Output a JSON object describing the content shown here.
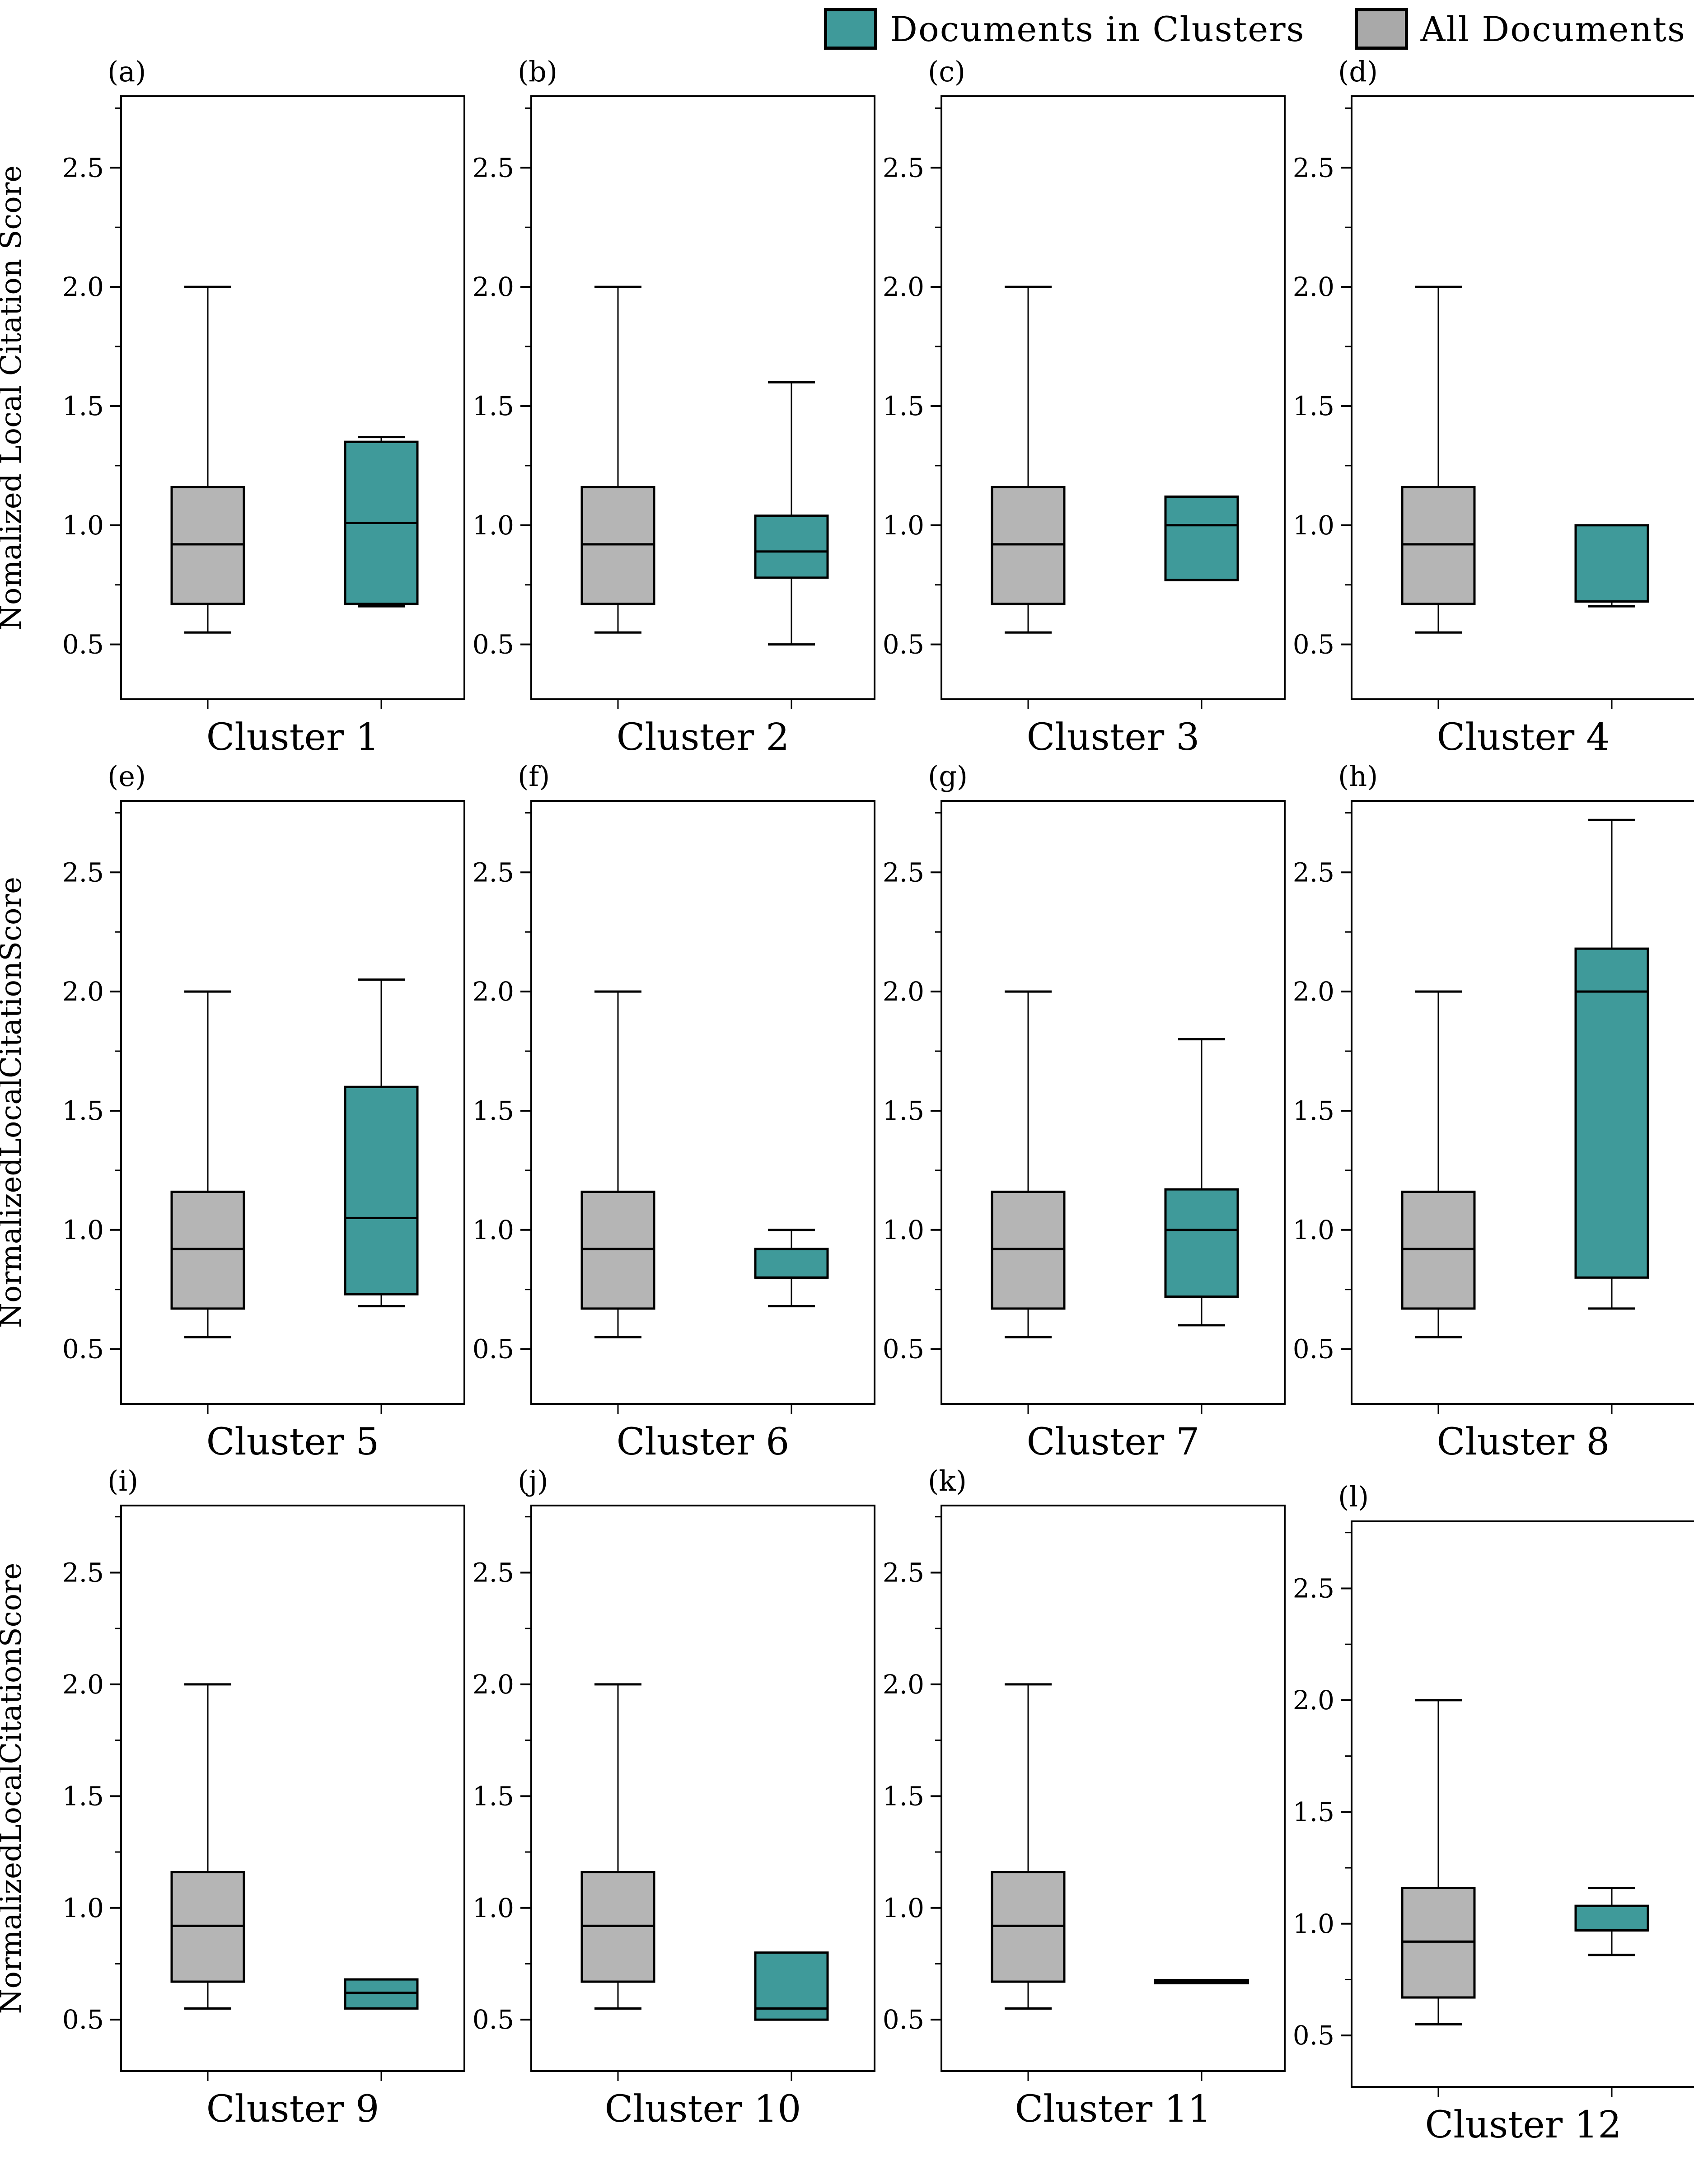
{
  "legend": {
    "items": [
      {
        "label": "Documents in Clusters",
        "color": "#3f9a9a"
      },
      {
        "label": "All Documents",
        "color": "#a9a9a9"
      }
    ]
  },
  "axis": {
    "ylim": [
      0.27,
      2.8
    ],
    "ytick_labels": [
      "0.5",
      "1.0",
      "1.5",
      "2.0",
      "2.5"
    ],
    "ytick_values": [
      0.5,
      1.0,
      1.5,
      2.0,
      2.5
    ],
    "minor_tick_values": [
      0.75,
      1.25,
      1.75,
      2.25,
      2.75
    ],
    "grid": false
  },
  "chart_data": [
    {
      "type": "box",
      "panel_label": "(a)",
      "title": "Cluster 1",
      "ylabel": "Nomalized Local Citation Score",
      "show_ylabel": true,
      "offset_y": 0,
      "series": [
        {
          "name": "All Documents",
          "color": "#b5b5b5",
          "low": 0.55,
          "q1": 0.67,
          "median": 0.92,
          "q3": 1.16,
          "high": 2.0
        },
        {
          "name": "Documents in Clusters",
          "color": "#3f9a9a",
          "low": 0.66,
          "q1": 0.67,
          "median": 1.01,
          "q3": 1.35,
          "high": 1.37
        }
      ]
    },
    {
      "type": "box",
      "panel_label": "(b)",
      "title": "Cluster 2",
      "ylabel": "",
      "show_ylabel": false,
      "offset_y": 0,
      "series": [
        {
          "name": "All Documents",
          "color": "#b5b5b5",
          "low": 0.55,
          "q1": 0.67,
          "median": 0.92,
          "q3": 1.16,
          "high": 2.0
        },
        {
          "name": "Documents in Clusters",
          "color": "#3f9a9a",
          "low": 0.5,
          "q1": 0.78,
          "median": 0.89,
          "q3": 1.04,
          "high": 1.6
        }
      ]
    },
    {
      "type": "box",
      "panel_label": "(c)",
      "title": "Cluster 3",
      "ylabel": "",
      "show_ylabel": false,
      "offset_y": 0,
      "series": [
        {
          "name": "All Documents",
          "color": "#b5b5b5",
          "low": 0.55,
          "q1": 0.67,
          "median": 0.92,
          "q3": 1.16,
          "high": 2.0
        },
        {
          "name": "Documents in Clusters",
          "color": "#3f9a9a",
          "low": 0.77,
          "q1": 0.77,
          "median": 1.0,
          "q3": 1.12,
          "high": 1.12
        }
      ]
    },
    {
      "type": "box",
      "panel_label": "(d)",
      "title": "Cluster 4",
      "ylabel": "",
      "show_ylabel": false,
      "offset_y": 0,
      "series": [
        {
          "name": "All Documents",
          "color": "#b5b5b5",
          "low": 0.55,
          "q1": 0.67,
          "median": 0.92,
          "q3": 1.16,
          "high": 2.0
        },
        {
          "name": "Documents in Clusters",
          "color": "#3f9a9a",
          "low": 0.66,
          "q1": 0.68,
          "median": 0.68,
          "q3": 1.0,
          "high": 1.0
        }
      ]
    },
    {
      "type": "box",
      "panel_label": "(e)",
      "title": "Cluster 5",
      "ylabel": "NormalizedLocalCitationScore",
      "show_ylabel": true,
      "offset_y": 0,
      "series": [
        {
          "name": "All Documents",
          "color": "#b5b5b5",
          "low": 0.55,
          "q1": 0.67,
          "median": 0.92,
          "q3": 1.16,
          "high": 2.0
        },
        {
          "name": "Documents in Clusters",
          "color": "#3f9a9a",
          "low": 0.68,
          "q1": 0.73,
          "median": 1.05,
          "q3": 1.6,
          "high": 2.05
        }
      ]
    },
    {
      "type": "box",
      "panel_label": "(f)",
      "title": "Cluster 6",
      "ylabel": "",
      "show_ylabel": false,
      "offset_y": 0,
      "series": [
        {
          "name": "All Documents",
          "color": "#b5b5b5",
          "low": 0.55,
          "q1": 0.67,
          "median": 0.92,
          "q3": 1.16,
          "high": 2.0
        },
        {
          "name": "Documents in Clusters",
          "color": "#3f9a9a",
          "low": 0.68,
          "q1": 0.8,
          "median": 0.8,
          "q3": 0.92,
          "high": 1.0
        }
      ]
    },
    {
      "type": "box",
      "panel_label": "(g)",
      "title": "Cluster 7",
      "ylabel": "",
      "show_ylabel": false,
      "offset_y": 0,
      "series": [
        {
          "name": "All Documents",
          "color": "#b5b5b5",
          "low": 0.55,
          "q1": 0.67,
          "median": 0.92,
          "q3": 1.16,
          "high": 2.0
        },
        {
          "name": "Documents in Clusters",
          "color": "#3f9a9a",
          "low": 0.6,
          "q1": 0.72,
          "median": 1.0,
          "q3": 1.17,
          "high": 1.8
        }
      ]
    },
    {
      "type": "box",
      "panel_label": "(h)",
      "title": "Cluster 8",
      "ylabel": "",
      "show_ylabel": false,
      "offset_y": 0,
      "series": [
        {
          "name": "All Documents",
          "color": "#b5b5b5",
          "low": 0.55,
          "q1": 0.67,
          "median": 0.92,
          "q3": 1.16,
          "high": 2.0
        },
        {
          "name": "Documents in Clusters",
          "color": "#3f9a9a",
          "low": 0.67,
          "q1": 0.8,
          "median": 2.0,
          "q3": 2.18,
          "high": 2.72
        }
      ]
    },
    {
      "type": "box",
      "panel_label": "(i)",
      "title": "Cluster 9",
      "ylabel": "NormalizedLocalCitationScore",
      "show_ylabel": true,
      "offset_y": 0,
      "series": [
        {
          "name": "All Documents",
          "color": "#b5b5b5",
          "low": 0.55,
          "q1": 0.67,
          "median": 0.92,
          "q3": 1.16,
          "high": 2.0
        },
        {
          "name": "Documents in Clusters",
          "color": "#3f9a9a",
          "low": 0.55,
          "q1": 0.55,
          "median": 0.62,
          "q3": 0.68,
          "high": 0.68
        }
      ]
    },
    {
      "type": "box",
      "panel_label": "(j)",
      "title": "Cluster 10",
      "ylabel": "",
      "show_ylabel": false,
      "offset_y": 0,
      "series": [
        {
          "name": "All Documents",
          "color": "#b5b5b5",
          "low": 0.55,
          "q1": 0.67,
          "median": 0.92,
          "q3": 1.16,
          "high": 2.0
        },
        {
          "name": "Documents in Clusters",
          "color": "#3f9a9a",
          "low": 0.5,
          "q1": 0.5,
          "median": 0.55,
          "q3": 0.8,
          "high": 0.8
        }
      ]
    },
    {
      "type": "box",
      "panel_label": "(k)",
      "title": "Cluster 11",
      "ylabel": "",
      "show_ylabel": false,
      "offset_y": 0,
      "series": [
        {
          "name": "All Documents",
          "color": "#b5b5b5",
          "low": 0.55,
          "q1": 0.67,
          "median": 0.92,
          "q3": 1.16,
          "high": 2.0
        },
        {
          "name": "Documents in Clusters",
          "color": "#3f9a9a",
          "single_value": 0.67
        }
      ]
    },
    {
      "type": "box",
      "panel_label": "(l)",
      "title": "Cluster 12",
      "ylabel": "",
      "show_ylabel": false,
      "offset_y": 35,
      "series": [
        {
          "name": "All Documents",
          "color": "#b5b5b5",
          "low": 0.55,
          "q1": 0.67,
          "median": 0.92,
          "q3": 1.16,
          "high": 2.0
        },
        {
          "name": "Documents in Clusters",
          "color": "#3f9a9a",
          "low": 0.86,
          "q1": 0.97,
          "median": 0.97,
          "q3": 1.08,
          "high": 1.16
        }
      ]
    }
  ]
}
